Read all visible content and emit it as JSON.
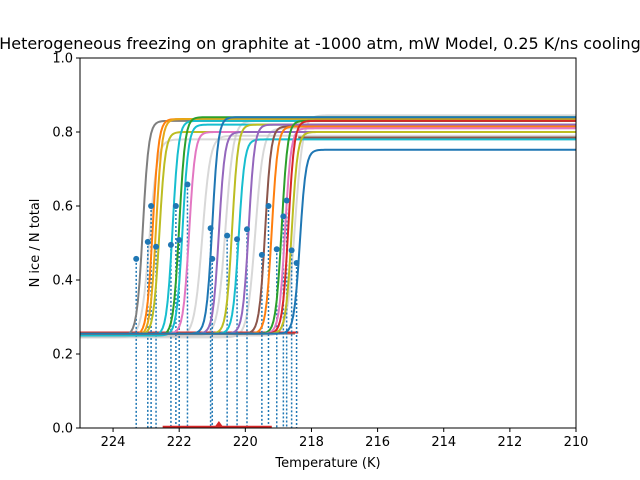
{
  "chart_data": {
    "type": "line",
    "title": "Heterogeneous freezing on graphite at -1000 atm, mW Model, 0.25 K/ns cooling",
    "xlabel": "Temperature (K)",
    "ylabel": "N ice / N total",
    "xlim": [
      225,
      210
    ],
    "ylim": [
      0,
      1
    ],
    "x_inverted": true,
    "xticks": [
      224,
      222,
      220,
      218,
      216,
      214,
      212,
      210
    ],
    "yticks": [
      0.0,
      0.2,
      0.4,
      0.6,
      0.8,
      1.0
    ],
    "xtick_labels": [
      "224",
      "222",
      "220",
      "218",
      "216",
      "214",
      "212",
      "210"
    ],
    "ytick_labels": [
      "0.0",
      "0.2",
      "0.4",
      "0.6",
      "0.8",
      "1.0"
    ],
    "grid": false,
    "colors": {
      "markers": "#1f77b4",
      "dotted_lines": "#1f77b4",
      "bottom_segment": "#d62728",
      "mean_marker": "#d62728",
      "background_runs": "#c8c8c8"
    },
    "series": [
      {
        "color": "#7f7f7f",
        "tm": 223.1,
        "base": 0.25,
        "plateau": 0.83,
        "marker": [
          223.3,
          0.457
        ]
      },
      {
        "color": "#ff7f0e",
        "tm": 222.8,
        "base": 0.25,
        "plateau": 0.835,
        "marker": [
          222.95,
          0.503
        ]
      },
      {
        "color": "#bcbd22",
        "tm": 222.6,
        "base": 0.252,
        "plateau": 0.8,
        "marker": [
          222.85,
          0.6
        ]
      },
      {
        "color": "#e6a817",
        "tm": 222.7,
        "base": 0.25,
        "plateau": 0.835,
        "marker": [
          222.7,
          0.49
        ]
      },
      {
        "color": "#17becf",
        "tm": 222.2,
        "base": 0.25,
        "plateau": 0.83,
        "marker": [
          222.25,
          0.495
        ]
      },
      {
        "color": "#2ca02c",
        "tm": 222.0,
        "base": 0.25,
        "plateau": 0.84,
        "marker": [
          222.1,
          0.6
        ]
      },
      {
        "color": "#17becf",
        "tm": 221.9,
        "base": 0.25,
        "plateau": 0.82,
        "marker": [
          222.0,
          0.508
        ]
      },
      {
        "color": "#e377c2",
        "tm": 221.7,
        "base": 0.255,
        "plateau": 0.8,
        "marker": [
          221.75,
          0.658
        ]
      },
      {
        "color": "#1f77b4",
        "tm": 221.0,
        "base": 0.255,
        "plateau": 0.84,
        "marker": [
          221.05,
          0.54
        ]
      },
      {
        "color": "#9467bd",
        "tm": 220.8,
        "base": 0.255,
        "plateau": 0.8,
        "marker": [
          221.0,
          0.457
        ]
      },
      {
        "color": "#bcbd22",
        "tm": 220.4,
        "base": 0.255,
        "plateau": 0.82,
        "marker": [
          220.55,
          0.52
        ]
      },
      {
        "color": "#17becf",
        "tm": 220.2,
        "base": 0.255,
        "plateau": 0.78,
        "marker": [
          220.25,
          0.51
        ]
      },
      {
        "color": "#9467bd",
        "tm": 219.9,
        "base": 0.255,
        "plateau": 0.82,
        "marker": [
          219.95,
          0.537
        ]
      },
      {
        "color": "#8c564b",
        "tm": 219.4,
        "base": 0.255,
        "plateau": 0.815,
        "marker": [
          219.5,
          0.468
        ]
      },
      {
        "color": "#ff7f0e",
        "tm": 219.2,
        "base": 0.255,
        "plateau": 0.815,
        "marker": [
          219.3,
          0.6
        ]
      },
      {
        "color": "#2ca02c",
        "tm": 218.9,
        "base": 0.255,
        "plateau": 0.83,
        "marker": [
          219.05,
          0.483
        ]
      },
      {
        "color": "#e377c2",
        "tm": 218.8,
        "base": 0.255,
        "plateau": 0.81,
        "marker": [
          218.85,
          0.572
        ]
      },
      {
        "color": "#d62728",
        "tm": 218.7,
        "base": 0.255,
        "plateau": 0.83,
        "marker": [
          218.75,
          0.615
        ]
      },
      {
        "color": "#bcbd22",
        "tm": 218.6,
        "base": 0.255,
        "plateau": 0.8,
        "marker": [
          218.6,
          0.48
        ]
      },
      {
        "color": "#1f77b4",
        "tm": 218.35,
        "base": 0.255,
        "plateau": 0.752,
        "marker": [
          218.45,
          0.446
        ]
      }
    ],
    "background_runs": [
      {
        "tm": 222.9,
        "base": 0.245,
        "plateau": 0.78
      },
      {
        "tm": 221.3,
        "base": 0.248,
        "plateau": 0.79
      },
      {
        "tm": 220.6,
        "base": 0.25,
        "plateau": 0.83
      },
      {
        "tm": 219.7,
        "base": 0.245,
        "plateau": 0.81
      },
      {
        "tm": 218.5,
        "base": 0.25,
        "plateau": 0.845
      }
    ],
    "baseline_lines": [
      {
        "color": "#7f7f7f",
        "from": 225.0,
        "to": 218.5,
        "value": 0.255
      },
      {
        "color": "#d62728",
        "from": 225.0,
        "to": 218.4,
        "value": 0.258
      },
      {
        "color": "#8c564b",
        "from": 218.4,
        "to": 210.0,
        "value": 0.785
      }
    ],
    "bottom_segment": {
      "from": 222.5,
      "to": 219.2,
      "value": 0.0
    },
    "mean_marker": {
      "x": 220.8,
      "y": 0.0
    }
  }
}
